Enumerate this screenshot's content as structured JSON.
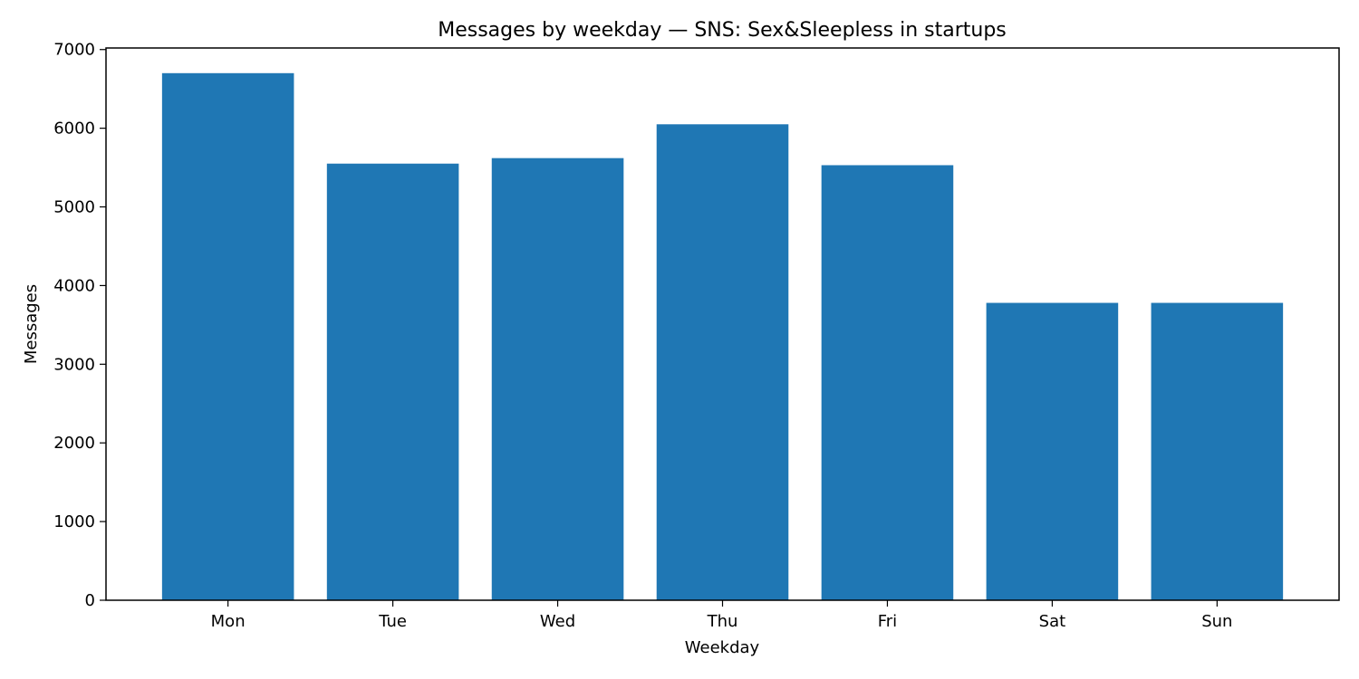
{
  "chart_data": {
    "type": "bar",
    "title": "Messages by weekday — SNS: Sex&Sleepless in startups",
    "xlabel": "Weekday",
    "ylabel": "Messages",
    "categories": [
      "Mon",
      "Tue",
      "Wed",
      "Thu",
      "Fri",
      "Sat",
      "Sun"
    ],
    "values": [
      6700,
      5550,
      5620,
      6050,
      5530,
      3780,
      3780
    ],
    "ylim": [
      0,
      7020
    ],
    "yticks": [
      0,
      1000,
      2000,
      3000,
      4000,
      5000,
      6000,
      7000
    ],
    "grid": false,
    "bar_color": "#1f77b4"
  }
}
